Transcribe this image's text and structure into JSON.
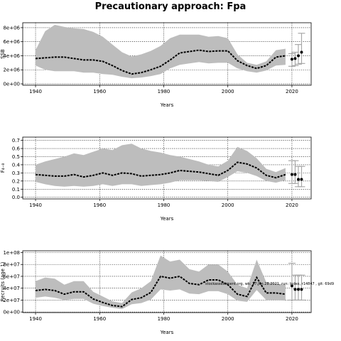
{
  "title": "Precautionary approach: Fpa",
  "annotation": "stockassessment.org, wk: 17.Jan.28.2021, run: Index, r14847 , git: 69d9",
  "colors": {
    "band": "#bdbdbd",
    "line": "#000000",
    "grid": "#000000",
    "errorbar": "#a8a8a8"
  },
  "chart_data": [
    {
      "type": "line",
      "panel": "ssb",
      "xlabel": "Years",
      "ylabel": "SSB",
      "xlim": [
        1936,
        2026
      ],
      "ylim": [
        -200000,
        8700000
      ],
      "xticks": [
        1940,
        1960,
        1980,
        2000,
        2020
      ],
      "yticks": [
        0,
        2000000,
        4000000,
        6000000,
        8000000
      ],
      "ytick_labels": [
        "0e+00",
        "2e+06",
        "4e+06",
        "6e+06",
        "8e+06"
      ],
      "grid": true,
      "series": [
        {
          "x": [
            1940,
            1943,
            1946,
            1949,
            1952,
            1955,
            1958,
            1961,
            1964,
            1967,
            1970,
            1973,
            1976,
            1979,
            1982,
            1985,
            1988,
            1991,
            1994,
            1997,
            2000,
            2003,
            2006,
            2009,
            2012,
            2015,
            2018
          ],
          "y": [
            3600000,
            3700000,
            3800000,
            3800000,
            3600000,
            3400000,
            3400000,
            3200000,
            2600000,
            1900000,
            1400000,
            1600000,
            2000000,
            2500000,
            3400000,
            4400000,
            4600000,
            4800000,
            4600000,
            4700000,
            4700000,
            3300000,
            2600000,
            2200000,
            2600000,
            3800000,
            4000000
          ],
          "lower": [
            2600000,
            2000000,
            1800000,
            1800000,
            1800000,
            1600000,
            1600000,
            1400000,
            1300000,
            1000000,
            800000,
            900000,
            1100000,
            1400000,
            2200000,
            2700000,
            2900000,
            3100000,
            2900000,
            3000000,
            3000000,
            2200000,
            1800000,
            1600000,
            1900000,
            2600000,
            2700000
          ],
          "upper": [
            4800000,
            7500000,
            8400000,
            8100000,
            7900000,
            7800000,
            7400000,
            6700000,
            5600000,
            4500000,
            3900000,
            4200000,
            4700000,
            5400000,
            6500000,
            7000000,
            7000000,
            7000000,
            6700000,
            6800000,
            6500000,
            4200000,
            3000000,
            2700000,
            3200000,
            4800000,
            5000000
          ]
        }
      ],
      "points": {
        "x": [
          2020,
          2021,
          2022,
          2023
        ],
        "y": [
          3500000,
          3600000,
          4000000,
          4500000
        ]
      },
      "errorbars": [
        {
          "x": 2020,
          "low": 2500000,
          "high": 4300000
        },
        {
          "x": 2021,
          "low": 2600000,
          "high": 4500000
        },
        {
          "x": 2022,
          "low": 2800000,
          "high": 5600000
        },
        {
          "x": 2023,
          "low": 2900000,
          "high": 7200000
        }
      ]
    },
    {
      "type": "line",
      "panel": "fbar",
      "xlabel": "Years",
      "ylabel": "F₄₋₈",
      "xlim": [
        1936,
        2026
      ],
      "ylim": [
        -0.02,
        0.74
      ],
      "xticks": [
        1940,
        1960,
        1980,
        2000,
        2020
      ],
      "yticks": [
        0,
        0.1,
        0.2,
        0.3,
        0.4,
        0.5,
        0.6,
        0.7
      ],
      "ytick_labels": [
        "0.0",
        "0.1",
        "0.2",
        "0.3",
        "0.4",
        "0.5",
        "0.6",
        "0.7"
      ],
      "grid": true,
      "series": [
        {
          "x": [
            1940,
            1943,
            1946,
            1949,
            1952,
            1955,
            1958,
            1961,
            1964,
            1967,
            1970,
            1973,
            1976,
            1979,
            1982,
            1985,
            1988,
            1991,
            1994,
            1997,
            2000,
            2003,
            2006,
            2009,
            2012,
            2015,
            2018
          ],
          "y": [
            0.28,
            0.27,
            0.26,
            0.26,
            0.28,
            0.25,
            0.27,
            0.3,
            0.27,
            0.3,
            0.29,
            0.26,
            0.27,
            0.28,
            0.3,
            0.33,
            0.32,
            0.31,
            0.29,
            0.27,
            0.33,
            0.43,
            0.41,
            0.36,
            0.27,
            0.24,
            0.28
          ],
          "lower": [
            0.19,
            0.16,
            0.14,
            0.13,
            0.14,
            0.13,
            0.14,
            0.16,
            0.14,
            0.16,
            0.16,
            0.14,
            0.15,
            0.16,
            0.18,
            0.21,
            0.21,
            0.21,
            0.2,
            0.19,
            0.25,
            0.32,
            0.3,
            0.26,
            0.2,
            0.18,
            0.21
          ],
          "upper": [
            0.4,
            0.44,
            0.47,
            0.5,
            0.54,
            0.52,
            0.56,
            0.6,
            0.58,
            0.64,
            0.66,
            0.6,
            0.57,
            0.55,
            0.52,
            0.5,
            0.47,
            0.44,
            0.4,
            0.38,
            0.45,
            0.62,
            0.57,
            0.48,
            0.35,
            0.31,
            0.36
          ]
        }
      ],
      "points": {
        "x": [
          2020,
          2021,
          2022,
          2023
        ],
        "y": [
          0.28,
          0.28,
          0.22,
          0.22
        ]
      },
      "errorbars": [
        {
          "x": 2020,
          "low": 0.17,
          "high": 0.45
        },
        {
          "x": 2021,
          "low": 0.17,
          "high": 0.45
        },
        {
          "x": 2022,
          "low": 0.13,
          "high": 0.38
        },
        {
          "x": 2023,
          "low": 0.13,
          "high": 0.38
        }
      ]
    },
    {
      "type": "line",
      "panel": "recruits",
      "xlabel": "Years",
      "ylabel": "Recruits (age 1)",
      "xlim": [
        1936,
        2026
      ],
      "ylim": [
        -1000000,
        103000000
      ],
      "xticks": [
        1940,
        1960,
        1980,
        2000,
        2020
      ],
      "yticks": [
        0,
        20000000,
        40000000,
        60000000,
        80000000,
        100000000
      ],
      "ytick_labels": [
        "0e+00",
        "2e+07",
        "4e+07",
        "6e+07",
        "8e+07",
        "1e+08"
      ],
      "grid": true,
      "series": [
        {
          "x": [
            1940,
            1943,
            1946,
            1949,
            1952,
            1955,
            1958,
            1961,
            1964,
            1967,
            1970,
            1973,
            1976,
            1979,
            1982,
            1985,
            1988,
            1991,
            1994,
            1997,
            2000,
            2003,
            2006,
            2009,
            2012,
            2015,
            2018
          ],
          "y": [
            36000000,
            38000000,
            36000000,
            30000000,
            34000000,
            34000000,
            22000000,
            16000000,
            11000000,
            9000000,
            21000000,
            24000000,
            33000000,
            60000000,
            57000000,
            60000000,
            48000000,
            46000000,
            54000000,
            54000000,
            46000000,
            30000000,
            26000000,
            58000000,
            32000000,
            32000000,
            30000000
          ],
          "lower": [
            24000000,
            26000000,
            24000000,
            20000000,
            22000000,
            22000000,
            14000000,
            10000000,
            7000000,
            5000000,
            13000000,
            15000000,
            21000000,
            38000000,
            36000000,
            38000000,
            31000000,
            30000000,
            35000000,
            35000000,
            30000000,
            19000000,
            17000000,
            37000000,
            20000000,
            20000000,
            19000000
          ],
          "upper": [
            52000000,
            58000000,
            56000000,
            46000000,
            52000000,
            52000000,
            34000000,
            26000000,
            18000000,
            15000000,
            33000000,
            40000000,
            52000000,
            95000000,
            85000000,
            88000000,
            72000000,
            68000000,
            80000000,
            80000000,
            68000000,
            46000000,
            40000000,
            88000000,
            50000000,
            48000000,
            46000000
          ]
        }
      ],
      "points": {
        "x": [
          2020,
          2021,
          2022,
          2023
        ],
        "y": [
          44000000,
          38000000,
          38000000,
          38000000
        ]
      },
      "errorbars": [
        {
          "x": 2020,
          "low": 20000000,
          "high": 82000000
        },
        {
          "x": 2021,
          "low": 20000000,
          "high": 62000000
        },
        {
          "x": 2022,
          "low": 20000000,
          "high": 62000000
        },
        {
          "x": 2023,
          "low": 20000000,
          "high": 62000000
        }
      ]
    }
  ]
}
